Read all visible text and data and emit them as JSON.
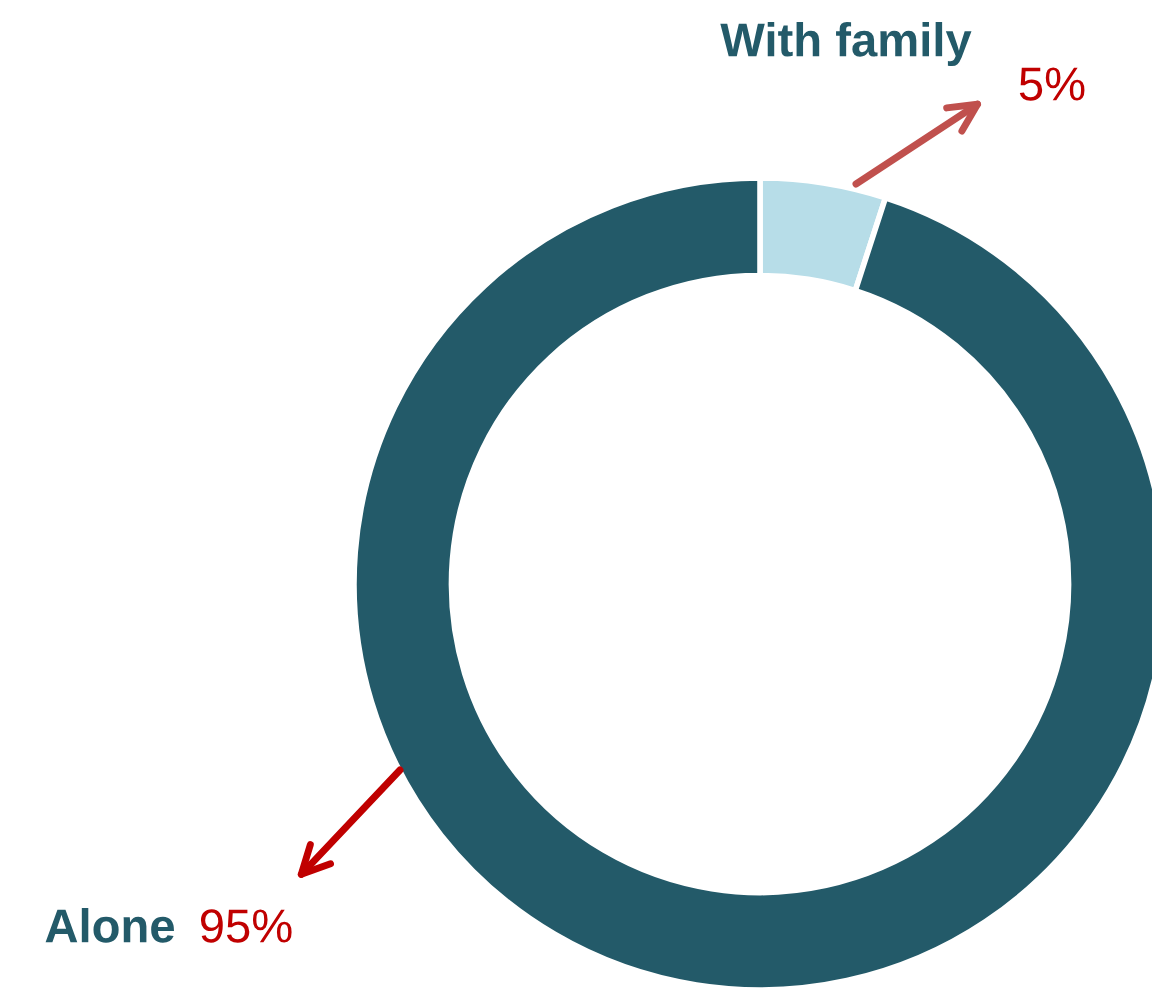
{
  "chart_data": {
    "type": "donut",
    "categories": [
      "With family",
      "Alone"
    ],
    "values": [
      5,
      95
    ],
    "colors": [
      "#b7dde8",
      "#235a69"
    ],
    "value_labels": [
      "5%",
      "95%"
    ]
  }
}
